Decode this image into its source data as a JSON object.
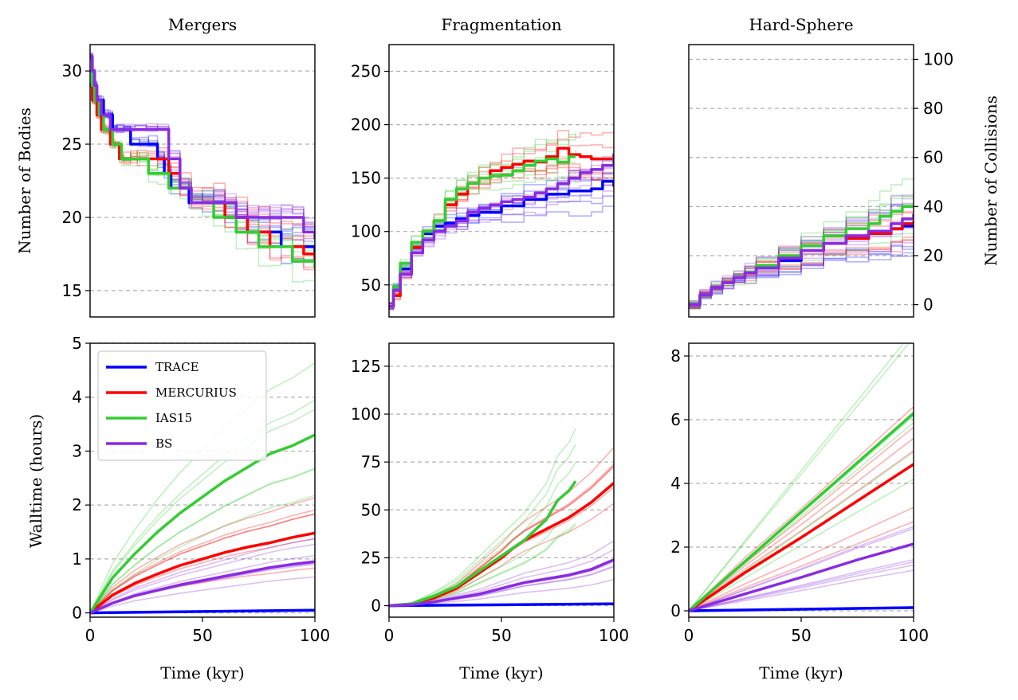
{
  "chart_data": [
    {
      "id": "mergers_bodies",
      "type": "line",
      "title": "Mergers",
      "xlabel": "",
      "ylabel": "Number of Bodies",
      "xlim": [
        0,
        100
      ],
      "ylim": [
        13.2,
        31.8
      ],
      "yticks": [
        15,
        20,
        25,
        30
      ],
      "xticks": [],
      "grid": true,
      "series": [
        {
          "name": "TRACE",
          "color": "#0000ff",
          "x": [
            0,
            1,
            2,
            3,
            4,
            6,
            8,
            10,
            12,
            15,
            18,
            22,
            26,
            30,
            33,
            36,
            40,
            44,
            50,
            55,
            60,
            65,
            70,
            75,
            80,
            85,
            90,
            95,
            100
          ],
          "y": [
            31,
            30,
            29,
            28,
            28,
            27,
            27,
            26,
            26,
            26,
            25,
            25,
            25,
            24,
            23,
            22,
            22,
            21,
            21,
            21,
            20,
            20,
            19,
            19,
            19,
            18,
            18,
            18,
            17.5
          ]
        },
        {
          "name": "MERCURIUS",
          "color": "#ff0000",
          "x": [
            0,
            1,
            2,
            3,
            4,
            5,
            7,
            9,
            11,
            13,
            15,
            18,
            21,
            25,
            30,
            35,
            40,
            45,
            50,
            55,
            60,
            65,
            70,
            75,
            80,
            85,
            90,
            95,
            100
          ],
          "y": [
            29,
            28,
            28,
            27,
            27,
            26,
            26,
            25,
            25,
            24,
            24,
            24,
            24,
            24,
            24,
            23,
            22,
            21,
            21,
            21,
            20,
            20,
            19,
            19,
            18,
            18,
            18,
            17.5,
            17
          ]
        },
        {
          "name": "IAS15",
          "color": "#33cc33",
          "x": [
            0,
            1,
            2,
            4,
            6,
            8,
            10,
            14,
            18,
            22,
            26,
            30,
            35,
            40,
            45,
            50,
            55,
            60,
            65,
            70,
            75,
            80,
            85,
            90,
            95,
            100
          ],
          "y": [
            30,
            29,
            28,
            27,
            26,
            26,
            25,
            24,
            24,
            24,
            23,
            23,
            22,
            22,
            21,
            21,
            20,
            20,
            19,
            19,
            18,
            18,
            18,
            17,
            17,
            16.5
          ]
        },
        {
          "name": "BS",
          "color": "#8a2be2",
          "x": [
            0,
            1,
            2,
            3,
            4,
            5,
            7,
            9,
            12,
            15,
            20,
            25,
            30,
            35,
            40,
            45,
            50,
            55,
            60,
            65,
            70,
            75,
            80,
            85,
            90,
            95,
            100
          ],
          "y": [
            31,
            30,
            29,
            28,
            28,
            27,
            27,
            26,
            26,
            26,
            26,
            26,
            26,
            24,
            22,
            21,
            21,
            21,
            21,
            20,
            20,
            20,
            20,
            20,
            20,
            19,
            18.5
          ]
        }
      ]
    },
    {
      "id": "frag_bodies",
      "type": "line",
      "title": "Fragmentation",
      "xlabel": "",
      "ylabel": "",
      "xlim": [
        0,
        100
      ],
      "ylim": [
        20,
        275
      ],
      "yticks": [
        50,
        100,
        150,
        200,
        250
      ],
      "xticks": [],
      "grid": true,
      "series": [
        {
          "name": "TRACE",
          "color": "#0000ff",
          "x": [
            0,
            2,
            5,
            10,
            15,
            20,
            25,
            30,
            35,
            40,
            50,
            60,
            70,
            80,
            90,
            95,
            100
          ],
          "y": [
            30,
            48,
            65,
            85,
            98,
            105,
            108,
            112,
            115,
            118,
            124,
            130,
            135,
            138,
            140,
            147,
            142
          ]
        },
        {
          "name": "MERCURIUS",
          "color": "#ff0000",
          "x": [
            0,
            2,
            5,
            10,
            15,
            20,
            25,
            30,
            35,
            40,
            45,
            50,
            55,
            60,
            65,
            70,
            75,
            80,
            85,
            90,
            95,
            100
          ],
          "y": [
            30,
            40,
            60,
            85,
            100,
            110,
            125,
            135,
            145,
            150,
            157,
            160,
            163,
            166,
            165,
            170,
            178,
            172,
            170,
            168,
            168,
            173
          ]
        },
        {
          "name": "IAS15",
          "color": "#33cc33",
          "x": [
            0,
            2,
            5,
            10,
            15,
            20,
            25,
            30,
            35,
            40,
            45,
            50,
            55,
            60,
            65,
            70,
            75,
            80,
            83
          ],
          "y": [
            30,
            48,
            70,
            90,
            100,
            110,
            130,
            140,
            145,
            150,
            152,
            153,
            157,
            162,
            166,
            168,
            165,
            170,
            170
          ]
        },
        {
          "name": "BS",
          "color": "#8a2be2",
          "x": [
            0,
            2,
            5,
            10,
            15,
            20,
            25,
            30,
            35,
            40,
            45,
            50,
            55,
            60,
            65,
            70,
            75,
            80,
            85,
            90,
            95,
            100
          ],
          "y": [
            30,
            45,
            60,
            80,
            92,
            100,
            105,
            110,
            118,
            122,
            125,
            128,
            130,
            132,
            136,
            140,
            145,
            150,
            155,
            158,
            162,
            170
          ]
        }
      ]
    },
    {
      "id": "hs_collisions",
      "type": "line",
      "title": "Hard-Sphere",
      "xlabel": "",
      "ylabel": "Number of Collisions",
      "y_axis_side": "right",
      "xlim": [
        0,
        100
      ],
      "ylim": [
        -5,
        106
      ],
      "yticks": [
        0,
        20,
        40,
        60,
        80,
        100
      ],
      "xticks": [],
      "grid": true,
      "series": [
        {
          "name": "TRACE",
          "color": "#0000ff",
          "x": [
            0,
            5,
            10,
            15,
            20,
            25,
            30,
            40,
            50,
            60,
            70,
            80,
            90,
            95,
            100
          ],
          "y": [
            0,
            4,
            7,
            9,
            11,
            13,
            15,
            18,
            22,
            25,
            27,
            29,
            31,
            32,
            33
          ]
        },
        {
          "name": "MERCURIUS",
          "color": "#ff0000",
          "x": [
            0,
            5,
            10,
            15,
            20,
            25,
            30,
            40,
            50,
            60,
            70,
            80,
            90,
            95,
            100
          ],
          "y": [
            0,
            4,
            7,
            9,
            11,
            13,
            16,
            19,
            22,
            25,
            27,
            29,
            31,
            33,
            34
          ]
        },
        {
          "name": "IAS15",
          "color": "#33cc33",
          "x": [
            0,
            5,
            10,
            15,
            20,
            25,
            30,
            40,
            50,
            60,
            70,
            80,
            85,
            90,
            95,
            100
          ],
          "y": [
            0,
            4,
            7,
            9,
            11,
            13,
            16,
            20,
            24,
            28,
            31,
            33,
            36,
            38,
            40,
            40
          ]
        },
        {
          "name": "BS",
          "color": "#8a2be2",
          "x": [
            0,
            5,
            10,
            15,
            20,
            25,
            30,
            40,
            50,
            60,
            70,
            80,
            90,
            95,
            100
          ],
          "y": [
            0,
            4,
            7,
            9,
            11,
            13,
            15,
            19,
            22,
            25,
            28,
            30,
            33,
            35,
            37
          ]
        }
      ]
    },
    {
      "id": "mergers_walltime",
      "type": "line",
      "title": "",
      "xlabel": "Time (kyr)",
      "ylabel": "Walltime (hours)",
      "xlim": [
        0,
        100
      ],
      "ylim": [
        -0.08,
        5
      ],
      "yticks": [
        0,
        1,
        2,
        3,
        4,
        5
      ],
      "xticks": [
        0,
        50,
        100
      ],
      "grid": true,
      "legend": "top-left",
      "series": [
        {
          "name": "TRACE",
          "color": "#0000ff",
          "x": [
            0,
            100
          ],
          "y": [
            0,
            0.05
          ]
        },
        {
          "name": "MERCURIUS",
          "color": "#ff0000",
          "x": [
            0,
            10,
            20,
            30,
            40,
            50,
            60,
            70,
            80,
            90,
            100
          ],
          "y": [
            0,
            0.33,
            0.55,
            0.72,
            0.88,
            1.0,
            1.12,
            1.22,
            1.3,
            1.4,
            1.48
          ]
        },
        {
          "name": "IAS15",
          "color": "#33cc33",
          "x": [
            0,
            10,
            20,
            30,
            40,
            50,
            60,
            70,
            80,
            90,
            100
          ],
          "y": [
            0,
            0.65,
            1.1,
            1.5,
            1.85,
            2.15,
            2.45,
            2.7,
            2.95,
            3.1,
            3.3
          ]
        },
        {
          "name": "BS",
          "color": "#8a2be2",
          "x": [
            0,
            10,
            20,
            30,
            40,
            50,
            60,
            70,
            80,
            90,
            100
          ],
          "y": [
            0,
            0.18,
            0.32,
            0.42,
            0.52,
            0.6,
            0.68,
            0.76,
            0.84,
            0.9,
            0.95
          ]
        }
      ]
    },
    {
      "id": "frag_walltime",
      "type": "line",
      "title": "",
      "xlabel": "Time (kyr)",
      "ylabel": "",
      "xlim": [
        0,
        100
      ],
      "ylim": [
        -6,
        137
      ],
      "yticks": [
        0,
        25,
        50,
        75,
        100,
        125
      ],
      "xticks": [
        0,
        50,
        100
      ],
      "grid": true,
      "series": [
        {
          "name": "TRACE",
          "color": "#0000ff",
          "x": [
            0,
            100
          ],
          "y": [
            0,
            1
          ]
        },
        {
          "name": "MERCURIUS",
          "color": "#ff0000",
          "x": [
            0,
            10,
            20,
            30,
            40,
            50,
            55,
            60,
            70,
            80,
            90,
            100
          ],
          "y": [
            0,
            1,
            4,
            9,
            17,
            25,
            30,
            34,
            40,
            46,
            54,
            64
          ]
        },
        {
          "name": "IAS15",
          "color": "#33cc33",
          "x": [
            0,
            10,
            20,
            30,
            40,
            50,
            60,
            70,
            75,
            80,
            83
          ],
          "y": [
            0,
            1,
            5,
            10,
            18,
            26,
            34,
            45,
            55,
            60,
            65
          ]
        },
        {
          "name": "BS",
          "color": "#8a2be2",
          "x": [
            0,
            10,
            20,
            30,
            40,
            50,
            60,
            70,
            80,
            90,
            100
          ],
          "y": [
            0,
            0.5,
            2,
            4,
            6,
            9,
            12,
            14,
            16,
            19,
            24
          ]
        }
      ]
    },
    {
      "id": "hs_walltime",
      "type": "line",
      "title": "",
      "xlabel": "Time (kyr)",
      "ylabel": "",
      "xlim": [
        0,
        100
      ],
      "ylim": [
        -0.2,
        8.4
      ],
      "yticks": [
        0,
        2,
        4,
        6,
        8
      ],
      "xticks": [
        0,
        50,
        100
      ],
      "grid": true,
      "series": [
        {
          "name": "TRACE",
          "color": "#0000ff",
          "x": [
            0,
            100
          ],
          "y": [
            0,
            0.1
          ]
        },
        {
          "name": "MERCURIUS",
          "color": "#ff0000",
          "x": [
            0,
            25,
            50,
            75,
            100
          ],
          "y": [
            0,
            1.2,
            2.3,
            3.45,
            4.6
          ]
        },
        {
          "name": "IAS15",
          "color": "#33cc33",
          "x": [
            0,
            25,
            50,
            75,
            100
          ],
          "y": [
            0,
            1.55,
            3.1,
            4.65,
            6.2
          ]
        },
        {
          "name": "BS",
          "color": "#8a2be2",
          "x": [
            0,
            25,
            50,
            75,
            100
          ],
          "y": [
            0,
            0.53,
            1.05,
            1.6,
            2.1
          ]
        }
      ]
    }
  ],
  "legend": {
    "entries": [
      {
        "label": "TRACE",
        "color": "#0000ff"
      },
      {
        "label": "MERCURIUS",
        "color": "#ff0000"
      },
      {
        "label": "IAS15",
        "color": "#33cc33"
      },
      {
        "label": "BS",
        "color": "#8a2be2"
      }
    ]
  }
}
